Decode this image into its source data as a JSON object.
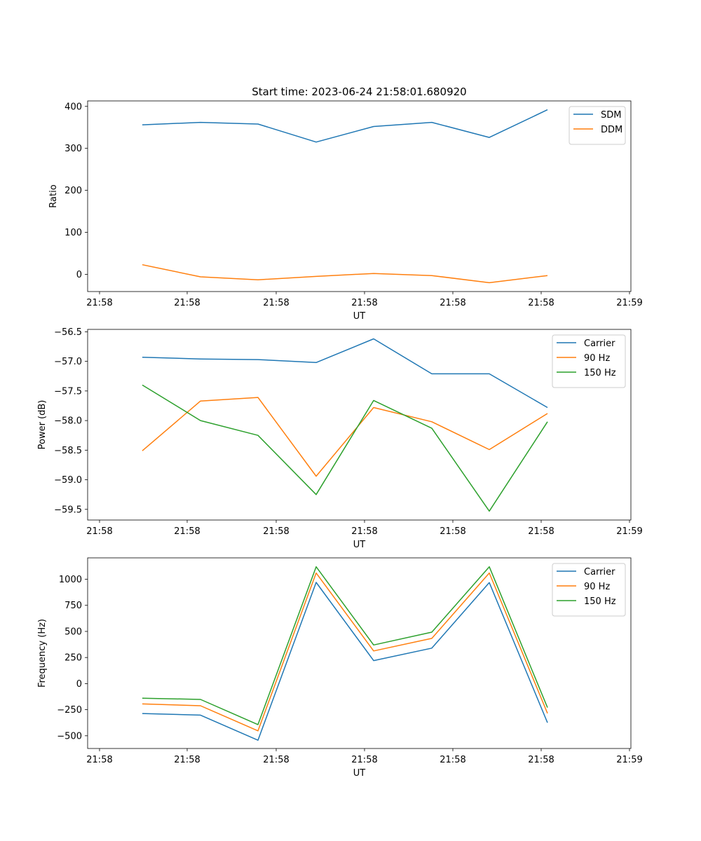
{
  "chart_data": [
    {
      "type": "line",
      "title": "Start time: 2023-06-24 21:58:01.680920",
      "xlabel": "UT",
      "ylabel": "Ratio",
      "x_tick_labels": [
        "21:58",
        "21:58",
        "21:58",
        "21:58",
        "21:58",
        "21:58",
        "21:59"
      ],
      "y_ticks": [
        0,
        100,
        200,
        300,
        400
      ],
      "ylim": [
        -41,
        413
      ],
      "legend_position": "top-right",
      "grid": false,
      "series": [
        {
          "name": "SDM",
          "color": "#1f77b4",
          "values": [
            356,
            362,
            358,
            315,
            352,
            362,
            326,
            392
          ]
        },
        {
          "name": "DDM",
          "color": "#ff7f0e",
          "values": [
            23,
            -6,
            -13,
            -5,
            2,
            -3,
            -20,
            -3
          ]
        }
      ]
    },
    {
      "type": "line",
      "title": "",
      "xlabel": "UT",
      "ylabel": "Power (dB)",
      "x_tick_labels": [
        "21:58",
        "21:58",
        "21:58",
        "21:58",
        "21:58",
        "21:58",
        "21:59"
      ],
      "y_ticks": [
        -59.5,
        -59.0,
        -58.5,
        -58.0,
        -57.5,
        -57.0,
        -56.5
      ],
      "y_tick_labels": [
        "−59.5",
        "−59.0",
        "−58.5",
        "−58.0",
        "−57.5",
        "−57.0",
        "−56.5"
      ],
      "ylim": [
        -59.68,
        -56.46
      ],
      "legend_position": "top-right",
      "grid": false,
      "series": [
        {
          "name": "Carrier",
          "color": "#1f77b4",
          "values": [
            -56.93,
            -56.96,
            -56.97,
            -57.02,
            -56.62,
            -57.21,
            -57.21,
            -57.78
          ]
        },
        {
          "name": "90 Hz",
          "color": "#ff7f0e",
          "values": [
            -58.51,
            -57.67,
            -57.61,
            -58.94,
            -57.78,
            -58.02,
            -58.49,
            -57.88
          ]
        },
        {
          "name": "150 Hz",
          "color": "#2ca02c",
          "values": [
            -57.4,
            -58.0,
            -58.25,
            -59.25,
            -57.66,
            -58.13,
            -59.53,
            -58.02
          ]
        }
      ]
    },
    {
      "type": "line",
      "title": "",
      "xlabel": "UT",
      "ylabel": "Frequency (Hz)",
      "x_tick_labels": [
        "21:58",
        "21:58",
        "21:58",
        "21:58",
        "21:58",
        "21:58",
        "21:59"
      ],
      "y_ticks": [
        -500,
        -250,
        0,
        250,
        500,
        750,
        1000
      ],
      "y_tick_labels": [
        "−500",
        "−250",
        "0",
        "250",
        "500",
        "750",
        "1000"
      ],
      "ylim": [
        -622,
        1205
      ],
      "legend_position": "top-right",
      "grid": false,
      "series": [
        {
          "name": "Carrier",
          "color": "#1f77b4",
          "values": [
            -287,
            -302,
            -543,
            970,
            220,
            340,
            968,
            -375
          ]
        },
        {
          "name": "90 Hz",
          "color": "#ff7f0e",
          "values": [
            -195,
            -212,
            -453,
            1060,
            313,
            433,
            1060,
            -285
          ]
        },
        {
          "name": "150 Hz",
          "color": "#2ca02c",
          "values": [
            -140,
            -152,
            -393,
            1120,
            370,
            493,
            1120,
            -230
          ]
        }
      ]
    }
  ]
}
